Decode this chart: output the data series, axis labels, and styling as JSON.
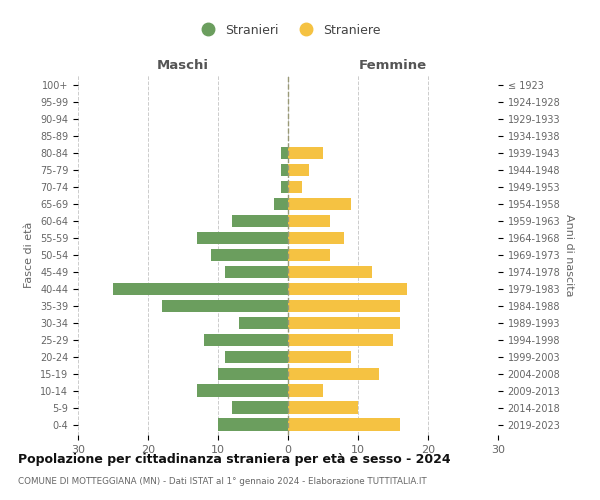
{
  "age_groups": [
    "0-4",
    "5-9",
    "10-14",
    "15-19",
    "20-24",
    "25-29",
    "30-34",
    "35-39",
    "40-44",
    "45-49",
    "50-54",
    "55-59",
    "60-64",
    "65-69",
    "70-74",
    "75-79",
    "80-84",
    "85-89",
    "90-94",
    "95-99",
    "100+"
  ],
  "birth_years": [
    "2019-2023",
    "2014-2018",
    "2009-2013",
    "2004-2008",
    "1999-2003",
    "1994-1998",
    "1989-1993",
    "1984-1988",
    "1979-1983",
    "1974-1978",
    "1969-1973",
    "1964-1968",
    "1959-1963",
    "1954-1958",
    "1949-1953",
    "1944-1948",
    "1939-1943",
    "1934-1938",
    "1929-1933",
    "1924-1928",
    "≤ 1923"
  ],
  "maschi": [
    10,
    8,
    13,
    10,
    9,
    12,
    7,
    18,
    25,
    9,
    11,
    13,
    8,
    2,
    1,
    1,
    1,
    0,
    0,
    0,
    0
  ],
  "femmine": [
    16,
    10,
    5,
    13,
    9,
    15,
    16,
    16,
    17,
    12,
    6,
    8,
    6,
    9,
    2,
    3,
    5,
    0,
    0,
    0,
    0
  ],
  "color_maschi": "#6b9e5e",
  "color_femmine": "#f5c242",
  "title": "Popolazione per cittadinanza straniera per età e sesso - 2024",
  "subtitle": "COMUNE DI MOTTEGGIANA (MN) - Dati ISTAT al 1° gennaio 2024 - Elaborazione TUTTITALIA.IT",
  "legend_maschi": "Stranieri",
  "legend_femmine": "Straniere",
  "xlabel_left": "Maschi",
  "xlabel_right": "Femmine",
  "ylabel_left": "Fasce di età",
  "ylabel_right": "Anni di nascita",
  "xlim": 30,
  "background_color": "#ffffff",
  "grid_color": "#cccccc"
}
